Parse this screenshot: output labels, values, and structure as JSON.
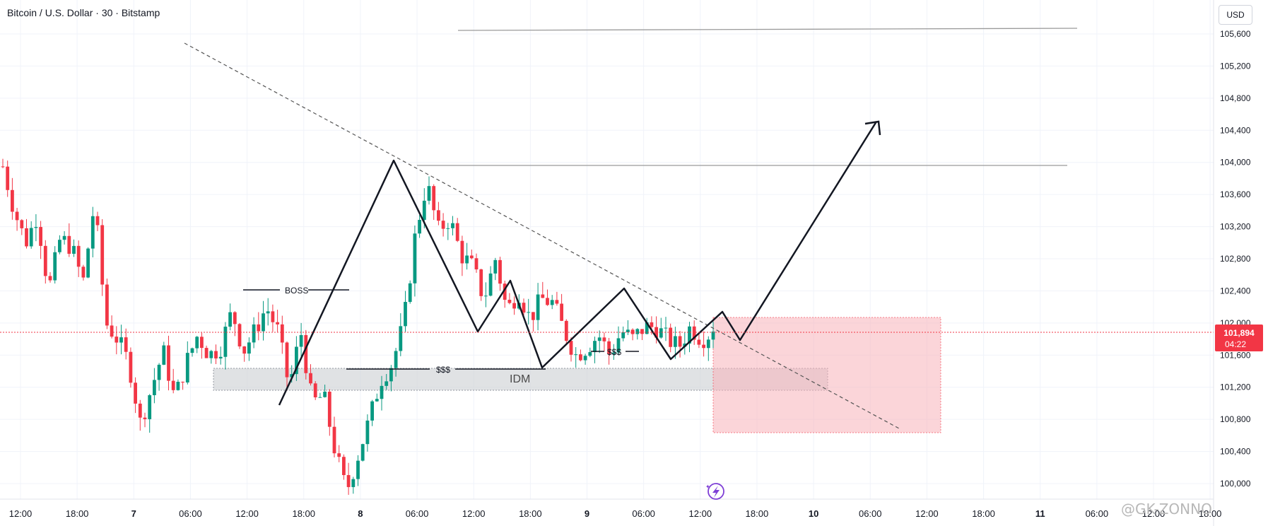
{
  "header": {
    "title": "Bitcoin / U.S. Dollar · 30 · Bitstamp"
  },
  "currency_button": {
    "label": "USD"
  },
  "watermark": {
    "text": "@GK-ZONNO"
  },
  "price_tag": {
    "price": "101,894",
    "countdown": "04:22"
  },
  "colors": {
    "up": "#089981",
    "down": "#f23645",
    "line": "#131722",
    "zone": "#f7b3ba",
    "idm_zone": "#cfd2d6"
  },
  "chart_data": {
    "type": "candlestick",
    "title": "Bitcoin / U.S. Dollar · 30 · Bitstamp",
    "ylim": [
      99700,
      106000
    ],
    "y_ticks": [
      100000,
      100400,
      100800,
      101200,
      101600,
      102000,
      102400,
      102800,
      103200,
      103600,
      104000,
      104400,
      104800,
      105200,
      105600
    ],
    "y_tick_labels": [
      "100,000",
      "100,400",
      "100,800",
      "101,200",
      "101,600",
      "102,000",
      "102,400",
      "102,800",
      "103,200",
      "103,600",
      "104,000",
      "104,400",
      "104,800",
      "105,200",
      "105,600"
    ],
    "x_tick_labels": [
      "12:00",
      "18:00",
      "7",
      "06:00",
      "12:00",
      "18:00",
      "8",
      "06:00",
      "12:00",
      "18:00",
      "9",
      "06:00",
      "12:00",
      "18:00",
      "10",
      "06:00",
      "12:00",
      "18:00",
      "11",
      "06:00",
      "12:00",
      "18:00"
    ],
    "current_price": 101894,
    "close_path": [
      103950,
      103400,
      103000,
      103350,
      102400,
      103050,
      102950,
      102500,
      103500,
      102000,
      101800,
      101500,
      100750,
      101200,
      101650,
      101050,
      101500,
      101850,
      101600,
      101700,
      102150,
      101650,
      101900,
      102200,
      101900,
      101200,
      101900,
      101000,
      101100,
      100400,
      99900,
      100350,
      100800,
      101300,
      101500,
      102000,
      103100,
      103750,
      103150,
      103300,
      102850,
      102700,
      102300,
      102800,
      102150,
      102400,
      102050,
      102300,
      102250,
      101900,
      101600,
      101700,
      101850,
      101600,
      101900,
      101800,
      101950,
      101950,
      101800,
      101700,
      101950,
      101800,
      101900
    ],
    "ohlc_series_note": "",
    "annotations": [
      {
        "text": "BOSS"
      },
      {
        "text": "$$$"
      },
      {
        "text": "$$$"
      },
      {
        "text": "IDM"
      }
    ]
  }
}
